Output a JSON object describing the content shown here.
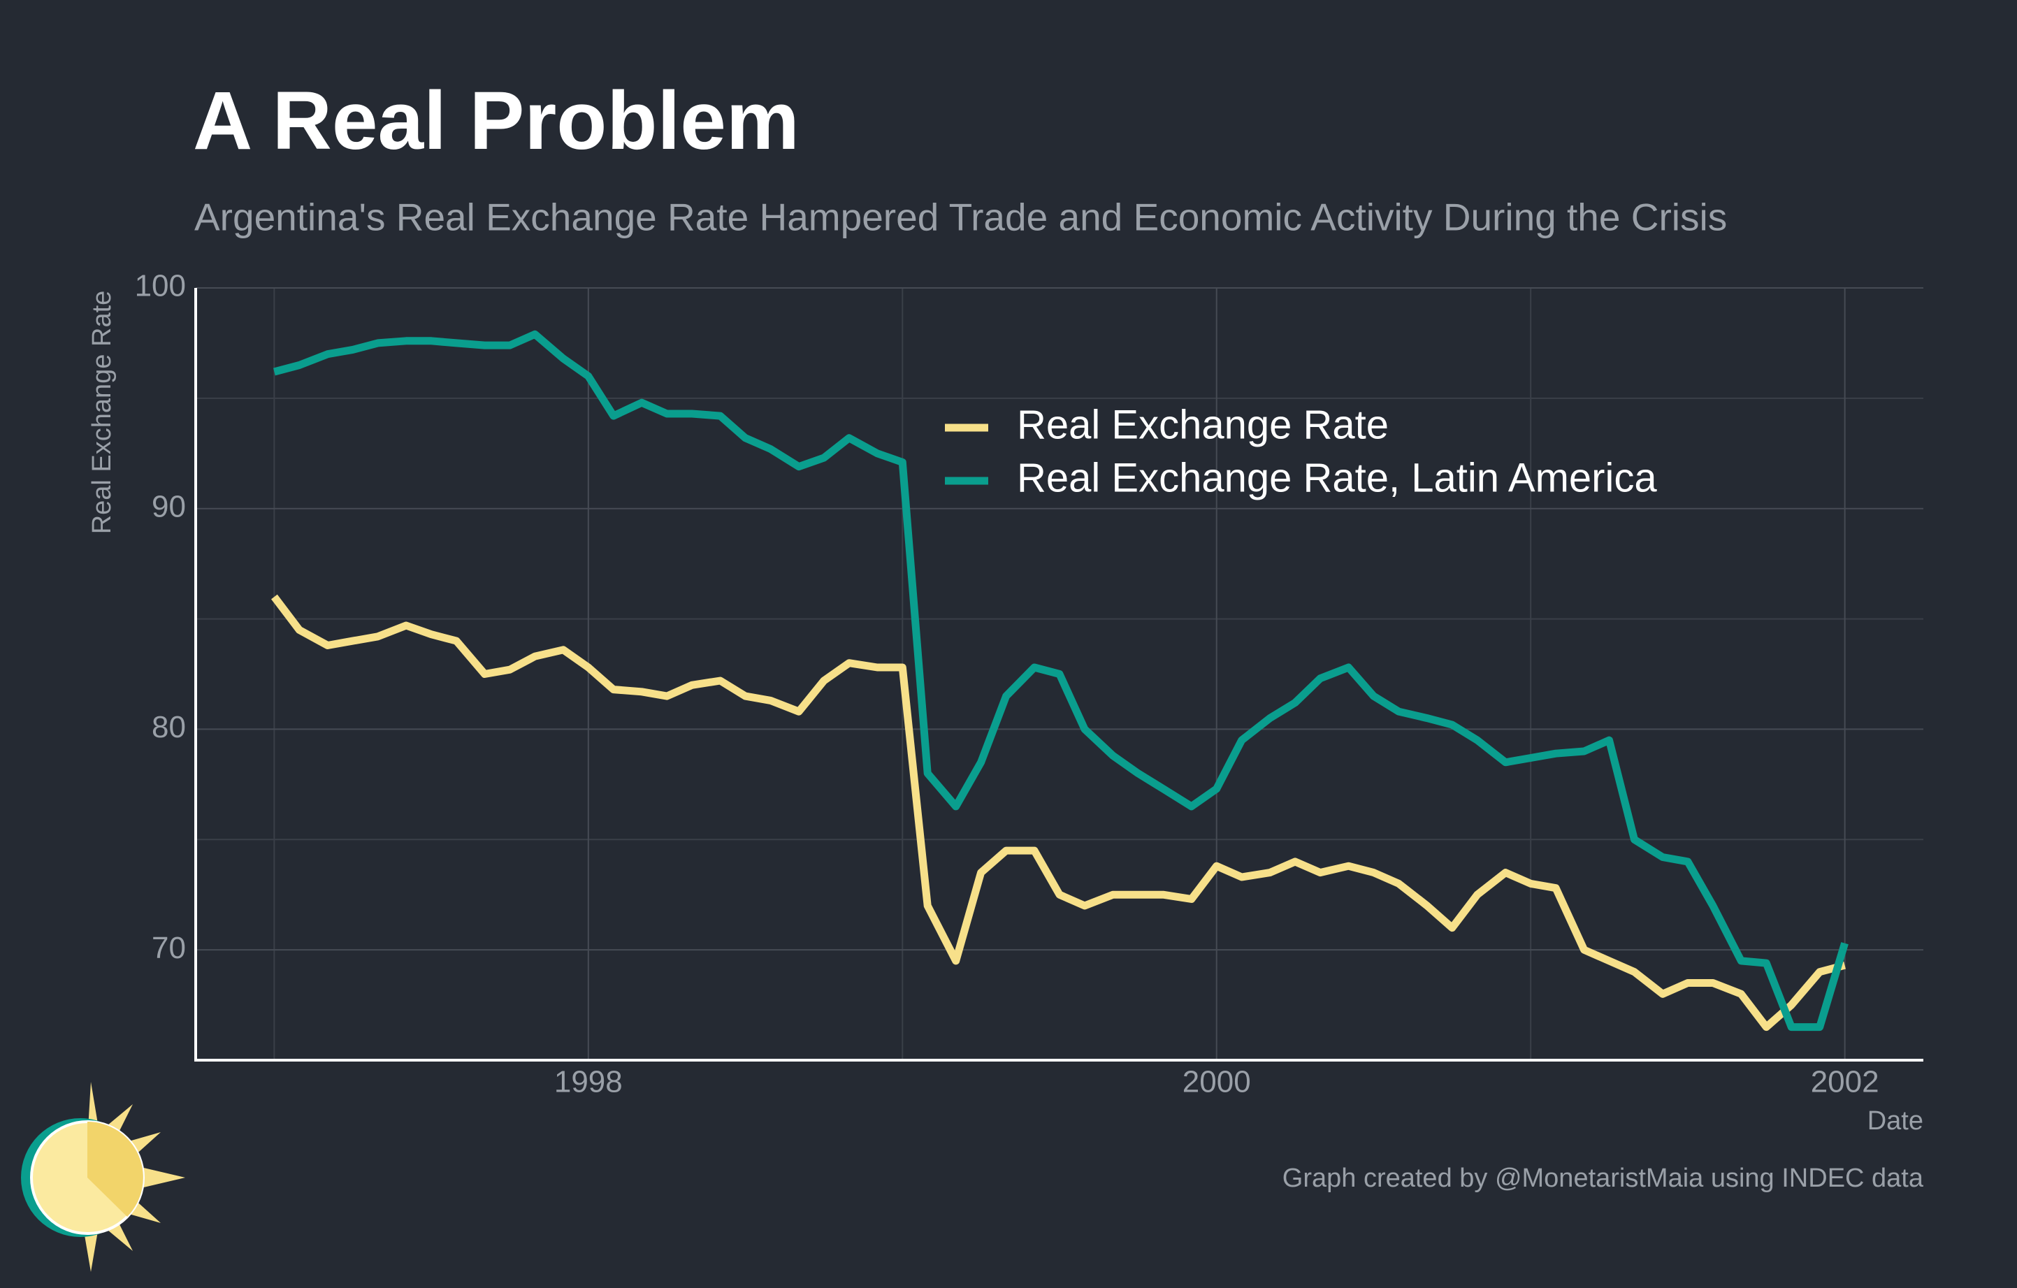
{
  "chart_data": {
    "type": "line",
    "title": "A Real Problem",
    "subtitle": "Argentina's Real Exchange Rate Hampered Trade and Economic Activity During the Crisis",
    "xlabel": "Date",
    "ylabel": "Real Exchange Rate",
    "caption": "Graph created by @MonetaristMaia using INDEC data",
    "x": [
      1997,
      1997.08,
      1997.17,
      1997.25,
      1997.33,
      1997.42,
      1997.5,
      1997.58,
      1997.67,
      1997.75,
      1997.83,
      1997.92,
      1998,
      1998.08,
      1998.17,
      1998.25,
      1998.33,
      1998.42,
      1998.5,
      1998.58,
      1998.67,
      1998.75,
      1998.83,
      1998.92,
      1999,
      1999.08,
      1999.17,
      1999.25,
      1999.33,
      1999.42,
      1999.5,
      1999.58,
      1999.67,
      1999.75,
      1999.83,
      1999.92,
      2000,
      2000.08,
      2000.17,
      2000.25,
      2000.33,
      2000.42,
      2000.5,
      2000.58,
      2000.67,
      2000.75,
      2000.83,
      2000.92,
      2001,
      2001.08,
      2001.17,
      2001.25,
      2001.33,
      2001.42,
      2001.5,
      2001.58,
      2001.67,
      2001.75,
      2001.83,
      2001.92,
      2002
    ],
    "series": [
      {
        "name": "Real Exchange Rate",
        "color": "#f7e08a",
        "values": [
          86,
          84.5,
          83.8,
          84,
          84.2,
          84.7,
          84.3,
          84,
          82.5,
          82.7,
          83.3,
          83.6,
          82.8,
          81.8,
          81.7,
          81.5,
          82,
          82.2,
          81.5,
          81.3,
          80.8,
          82.2,
          83,
          82.8,
          82.8,
          72,
          69.5,
          73.5,
          74.5,
          74.5,
          72.5,
          72,
          72.5,
          72.5,
          72.5,
          72.3,
          73.8,
          73.3,
          73.5,
          74,
          73.5,
          73.8,
          73.5,
          73,
          72,
          71,
          72.5,
          73.5,
          73,
          72.8,
          70,
          69.5,
          69,
          68,
          68.5,
          68.5,
          68,
          66.5,
          67.5,
          69,
          69.3
        ]
      },
      {
        "name": "Real Exchange Rate, Latin America",
        "color": "#0a9e8e",
        "values": [
          96.2,
          96.5,
          97,
          97.2,
          97.5,
          97.6,
          97.6,
          97.5,
          97.4,
          97.4,
          97.9,
          96.8,
          96,
          94.2,
          94.8,
          94.3,
          94.3,
          94.2,
          93.2,
          92.7,
          91.9,
          92.3,
          93.2,
          92.5,
          92.1,
          78,
          76.5,
          78.5,
          81.5,
          82.8,
          82.5,
          80,
          78.8,
          78,
          77.3,
          76.5,
          77.3,
          79.5,
          80.5,
          81.2,
          82.3,
          82.8,
          81.5,
          80.8,
          80.5,
          80.2,
          79.5,
          78.5,
          78.7,
          78.9,
          79,
          79.5,
          75,
          74.2,
          74,
          72,
          69.5,
          69.4,
          66.5,
          66.5,
          70.3
        ]
      }
    ],
    "xlim": [
      1996.75,
      2002.25
    ],
    "xticks": [
      1998,
      2000,
      2002
    ],
    "ylim": [
      65,
      100
    ],
    "yticks": [
      70,
      80,
      90,
      100
    ],
    "grid": true
  }
}
